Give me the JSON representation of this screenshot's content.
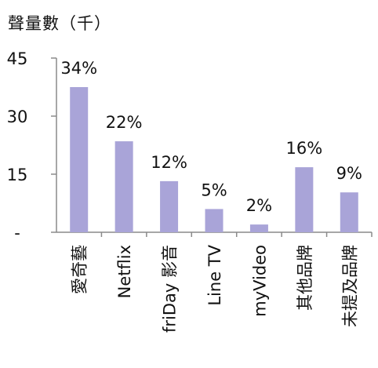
{
  "chart_data": {
    "type": "bar",
    "ylabel": "聲量數（千）",
    "ylim": [
      0,
      45
    ],
    "y_ticks": [
      {
        "value": 0,
        "label": "-"
      },
      {
        "value": 15,
        "label": "15"
      },
      {
        "value": 30,
        "label": "30"
      },
      {
        "value": 45,
        "label": "45"
      }
    ],
    "categories": [
      "愛奇藝",
      "Netflix",
      "friDay 影音",
      "Line TV",
      "myVideo",
      "其他品牌",
      "未提及品牌"
    ],
    "values": [
      37.5,
      23.5,
      13.2,
      6.0,
      2.0,
      16.8,
      10.3
    ],
    "data_labels": [
      "34%",
      "22%",
      "12%",
      "5%",
      "2%",
      "16%",
      "9%"
    ],
    "bar_color": "#a9a4d8",
    "axis_color": "#8a8a8a",
    "grid": false,
    "legend": "none"
  }
}
